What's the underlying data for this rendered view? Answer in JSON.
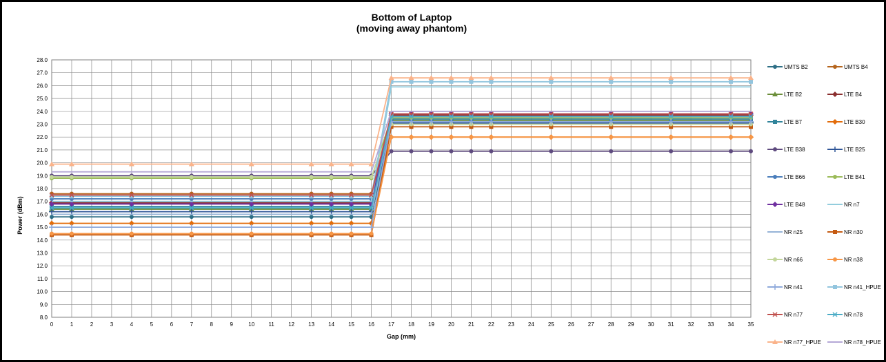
{
  "chart_data": {
    "type": "line",
    "title": "Bottom of Laptop",
    "subtitle": "(moving away phantom)",
    "xlabel": "Gap (mm)",
    "ylabel": "Power (dBm)",
    "ylim": [
      8.0,
      28.0
    ],
    "y_ticks": [
      "8.0",
      "9.0",
      "10.0",
      "11.0",
      "12.0",
      "13.0",
      "14.0",
      "15.0",
      "16.0",
      "17.0",
      "18.0",
      "19.0",
      "20.0",
      "21.0",
      "22.0",
      "23.0",
      "24.0",
      "25.0",
      "26.0",
      "27.0",
      "28.0"
    ],
    "x_ticks": [
      "0",
      "1",
      "2",
      "3",
      "4",
      "5",
      "6",
      "7",
      "8",
      "9",
      "10",
      "11",
      "12",
      "13",
      "14",
      "15",
      "16",
      "17",
      "18",
      "19",
      "20",
      "21",
      "22",
      "23",
      "24",
      "25",
      "26",
      "27",
      "28",
      "29",
      "30",
      "31",
      "32",
      "33",
      "34",
      "35"
    ],
    "x": [
      0,
      1,
      4,
      7,
      10,
      13,
      14,
      15,
      16,
      17,
      18,
      19,
      20,
      21,
      22,
      25,
      28,
      31,
      34,
      35
    ],
    "grid": true,
    "legend_position": "right",
    "series": [
      {
        "name": "UMTS B2",
        "color": "#2e6f86",
        "marker": "circle",
        "low": 15.8,
        "high": 23.0
      },
      {
        "name": "UMTS B4",
        "color": "#b5651d",
        "marker": "circle",
        "low": 17.6,
        "high": 23.6
      },
      {
        "name": "LTE B2",
        "color": "#6b8e3a",
        "marker": "triangle",
        "low": 16.4,
        "high": 23.3
      },
      {
        "name": "LTE B4",
        "color": "#8b2e2e",
        "marker": "diamond",
        "low": 16.9,
        "high": 23.7
      },
      {
        "name": "LTE B7",
        "color": "#31849b",
        "marker": "square",
        "low": 16.6,
        "high": 23.4
      },
      {
        "name": "LTE B30",
        "color": "#e36c0a",
        "marker": "diamond",
        "low": 15.3,
        "high": 22.0
      },
      {
        "name": "LTE B38",
        "color": "#5e4a7e",
        "marker": "circle",
        "low": 19.0,
        "high": 20.9
      },
      {
        "name": "LTE B25",
        "color": "#2f5597",
        "marker": "plus",
        "low": 16.2,
        "high": 23.1
      },
      {
        "name": "LTE B66",
        "color": "#4a7ebb",
        "marker": "circle",
        "low": 17.2,
        "high": 23.2
      },
      {
        "name": "LTE B41",
        "color": "#9bbb59",
        "marker": "circle",
        "low": 18.8,
        "high": 23.5
      },
      {
        "name": "LTE B48",
        "color": "#7030a0",
        "marker": "diamond",
        "low": 16.8,
        "high": 23.8
      },
      {
        "name": "NR n7",
        "color": "#93cddd",
        "marker": "line",
        "low": 17.0,
        "high": 25.9
      },
      {
        "name": "NR n25",
        "color": "#95b3d7",
        "marker": "cross",
        "low": 16.0,
        "high": 23.6
      },
      {
        "name": "NR n30",
        "color": "#c55a11",
        "marker": "square",
        "low": 14.4,
        "high": 22.8
      },
      {
        "name": "NR n66",
        "color": "#c3d69b",
        "marker": "circle",
        "low": 18.9,
        "high": 23.0
      },
      {
        "name": "NR n38",
        "color": "#f79646",
        "marker": "circle",
        "low": 14.5,
        "high": 22.0
      },
      {
        "name": "NR n41",
        "color": "#8ea9db",
        "marker": "plus",
        "low": 15.0,
        "high": 23.2
      },
      {
        "name": "NR n41_HPUE",
        "color": "#92c5de",
        "marker": "square",
        "low": 17.4,
        "high": 26.3
      },
      {
        "name": "NR n77",
        "color": "#c0504d",
        "marker": "x",
        "low": 17.5,
        "high": 23.8
      },
      {
        "name": "NR n78",
        "color": "#4bacc6",
        "marker": "x",
        "low": 16.5,
        "high": 23.6
      },
      {
        "name": "NR n77_HPUE",
        "color": "#fab38a",
        "marker": "triangle",
        "low": 19.9,
        "high": 26.6
      },
      {
        "name": "NR n78_HPUE",
        "color": "#b4a7d6",
        "marker": "line",
        "low": 19.3,
        "high": 24.0
      }
    ]
  }
}
